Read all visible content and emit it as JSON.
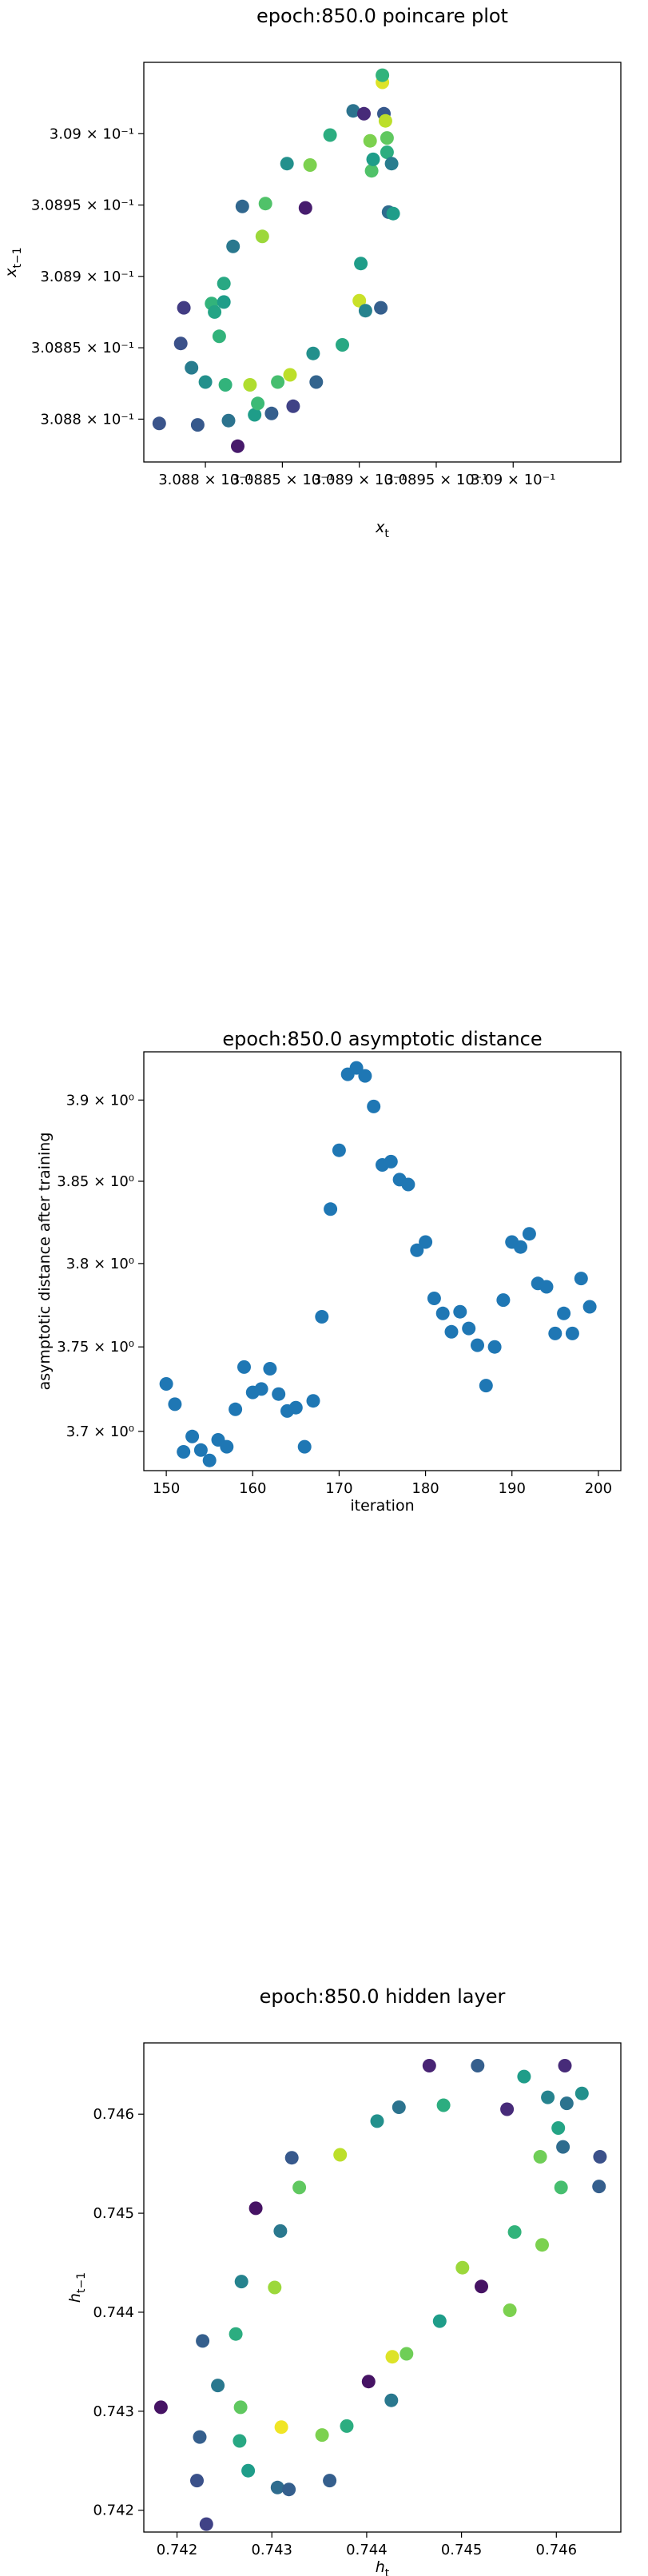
{
  "chart_data": [
    {
      "type": "scatter",
      "title": "epoch:850.0 poincare plot",
      "xlabel": "x_t",
      "ylabel": "x_{t-1}",
      "xscale": "log",
      "yscale": "log",
      "xlim": [
        0.30876,
        0.30907
      ],
      "ylim": [
        0.30877,
        0.30905
      ],
      "xticks": [
        0.3088,
        0.30885,
        0.3089,
        0.30895,
        0.309
      ],
      "xtick_labels": [
        "3.088 × 10⁻¹",
        "3.0885 × 10⁻¹",
        "3.089 × 10⁻¹",
        "3.0895 × 10⁻¹",
        "3.09 × 10⁻¹"
      ],
      "yticks": [
        0.3088,
        0.30885,
        0.3089,
        0.30895,
        0.309
      ],
      "ytick_labels": [
        "3.088 × 10⁻¹",
        "3.0885 × 10⁻¹",
        "3.089 × 10⁻¹",
        "3.0895 × 10⁻¹",
        "3.09 × 10⁻¹"
      ],
      "colormap": "viridis",
      "x": [
        0.30877,
        0.308784,
        0.308786,
        0.308791,
        0.308795,
        0.3088,
        0.308804,
        0.308806,
        0.308809,
        0.308812,
        0.308812,
        0.308813,
        0.308815,
        0.308818,
        0.308821,
        0.308824,
        0.308829,
        0.308832,
        0.308834,
        0.308837,
        0.308839,
        0.308843,
        0.308847,
        0.308853,
        0.308855,
        0.308857,
        0.308865,
        0.308868,
        0.30887,
        0.308872,
        0.308881,
        0.308889,
        0.308896,
        0.3089,
        0.308901,
        0.308903,
        0.308904,
        0.308907,
        0.308908,
        0.308909,
        0.308914,
        0.308915,
        0.308915,
        0.308916,
        0.308917,
        0.308918,
        0.308918,
        0.308919,
        0.308921,
        0.308922
      ],
      "y": [
        0.308797,
        0.308853,
        0.308878,
        0.308836,
        0.308796,
        0.308826,
        0.308881,
        0.308875,
        0.308858,
        0.308895,
        0.308882,
        0.308824,
        0.308799,
        0.308921,
        0.308781,
        0.308949,
        0.308824,
        0.308803,
        0.308811,
        0.308928,
        0.308951,
        0.308804,
        0.308826,
        0.308979,
        0.308831,
        0.308809,
        0.308948,
        0.308978,
        0.308846,
        0.308826,
        0.308999,
        0.308852,
        0.309016,
        0.308883,
        0.308909,
        0.309014,
        0.308876,
        0.308995,
        0.308974,
        0.308982,
        0.308878,
        0.309036,
        0.309041,
        0.309014,
        0.309009,
        0.308987,
        0.308997,
        0.308945,
        0.308979,
        0.308944
      ],
      "c": [
        0.26,
        0.25,
        0.18,
        0.42,
        0.28,
        0.5,
        0.65,
        0.58,
        0.65,
        0.6,
        0.55,
        0.65,
        0.38,
        0.4,
        0.07,
        0.33,
        0.88,
        0.55,
        0.68,
        0.85,
        0.72,
        0.3,
        0.7,
        0.5,
        0.9,
        0.2,
        0.08,
        0.8,
        0.5,
        0.32,
        0.62,
        0.6,
        0.38,
        0.92,
        0.55,
        0.12,
        0.45,
        0.8,
        0.72,
        0.55,
        0.3,
        0.95,
        0.65,
        0.28,
        0.9,
        0.62,
        0.75,
        0.35,
        0.42,
        0.55
      ]
    },
    {
      "type": "scatter",
      "title": "epoch:850.0 asymptotic distance",
      "xlabel": "iteration",
      "ylabel": "asymptotic distance after training",
      "yscale": "log",
      "xlim": [
        147.4,
        202.6
      ],
      "ylim": [
        3.677,
        3.93
      ],
      "xticks": [
        150,
        160,
        170,
        180,
        190,
        200
      ],
      "xtick_labels": [
        "150",
        "160",
        "170",
        "180",
        "190",
        "200"
      ],
      "yticks": [
        3.7,
        3.75,
        3.8,
        3.85,
        3.9
      ],
      "ytick_labels": [
        "3.7 × 10⁰",
        "3.75 × 10⁰",
        "3.8 × 10⁰",
        "3.85 × 10⁰",
        "3.9 × 10⁰"
      ],
      "color": "#1f77b4",
      "x": [
        150,
        151,
        152,
        153,
        154,
        155,
        156,
        157,
        158,
        159,
        160,
        161,
        162,
        163,
        164,
        165,
        166,
        167,
        168,
        169,
        170,
        171,
        172,
        173,
        174,
        175,
        176,
        177,
        178,
        179,
        180,
        181,
        182,
        183,
        184,
        185,
        186,
        187,
        188,
        189,
        190,
        191,
        192,
        193,
        194,
        195,
        196,
        197,
        198,
        199
      ],
      "y": [
        3.728,
        3.716,
        3.688,
        3.697,
        3.689,
        3.683,
        3.695,
        3.691,
        3.713,
        3.738,
        3.723,
        3.725,
        3.737,
        3.722,
        3.712,
        3.714,
        3.691,
        3.718,
        3.768,
        3.833,
        3.869,
        3.916,
        3.92,
        3.915,
        3.896,
        3.86,
        3.862,
        3.851,
        3.848,
        3.808,
        3.813,
        3.779,
        3.77,
        3.759,
        3.771,
        3.761,
        3.751,
        3.727,
        3.75,
        3.778,
        3.813,
        3.81,
        3.818,
        3.788,
        3.786,
        3.758,
        3.77,
        3.758,
        3.791,
        3.774
      ]
    },
    {
      "type": "scatter",
      "title": "epoch:850.0 hidden layer",
      "xlabel": "h_t",
      "ylabel": "h_{t-1}",
      "xlim": [
        0.74165,
        0.74668
      ],
      "ylim": [
        0.74178,
        0.74672
      ],
      "xticks": [
        0.742,
        0.743,
        0.744,
        0.745,
        0.746
      ],
      "xtick_labels": [
        "0.742",
        "0.743",
        "0.744",
        "0.745",
        "0.746"
      ],
      "yticks": [
        0.742,
        0.743,
        0.744,
        0.745,
        0.746
      ],
      "ytick_labels": [
        "0.742",
        "0.743",
        "0.744",
        "0.745",
        "0.746"
      ],
      "colormap": "viridis",
      "x": [
        0.74183,
        0.74221,
        0.74224,
        0.74227,
        0.74231,
        0.74243,
        0.74262,
        0.74266,
        0.74267,
        0.74268,
        0.74275,
        0.74283,
        0.74303,
        0.74306,
        0.74309,
        0.7431,
        0.74318,
        0.74321,
        0.74329,
        0.74353,
        0.74361,
        0.74372,
        0.74379,
        0.74402,
        0.74411,
        0.74426,
        0.74427,
        0.74434,
        0.74442,
        0.74466,
        0.74477,
        0.74481,
        0.74501,
        0.74517,
        0.74521,
        0.74548,
        0.74551,
        0.74556,
        0.74566,
        0.74583,
        0.74585,
        0.74591,
        0.74602,
        0.74605,
        0.74607,
        0.74609,
        0.74611,
        0.74627,
        0.74645,
        0.74646
      ],
      "y": [
        0.74304,
        0.7423,
        0.74274,
        0.74371,
        0.74186,
        0.74326,
        0.74378,
        0.7427,
        0.74304,
        0.74431,
        0.7424,
        0.74505,
        0.74425,
        0.74223,
        0.74482,
        0.74284,
        0.74221,
        0.74556,
        0.74526,
        0.74276,
        0.7423,
        0.74559,
        0.74285,
        0.7433,
        0.74593,
        0.74311,
        0.74355,
        0.74607,
        0.74358,
        0.74649,
        0.74391,
        0.74609,
        0.74445,
        0.74649,
        0.74426,
        0.74605,
        0.74402,
        0.74481,
        0.74638,
        0.74557,
        0.74468,
        0.74617,
        0.74586,
        0.74526,
        0.74567,
        0.74649,
        0.74611,
        0.74621,
        0.74527,
        0.74557
      ],
      "c": [
        0.05,
        0.25,
        0.3,
        0.3,
        0.2,
        0.4,
        0.62,
        0.6,
        0.75,
        0.45,
        0.55,
        0.05,
        0.85,
        0.35,
        0.4,
        0.98,
        0.3,
        0.28,
        0.75,
        0.8,
        0.3,
        0.9,
        0.62,
        0.05,
        0.5,
        0.4,
        0.95,
        0.38,
        0.78,
        0.1,
        0.55,
        0.62,
        0.85,
        0.3,
        0.05,
        0.12,
        0.8,
        0.65,
        0.55,
        0.78,
        0.8,
        0.45,
        0.58,
        0.7,
        0.35,
        0.12,
        0.38,
        0.5,
        0.3,
        0.25
      ]
    }
  ]
}
